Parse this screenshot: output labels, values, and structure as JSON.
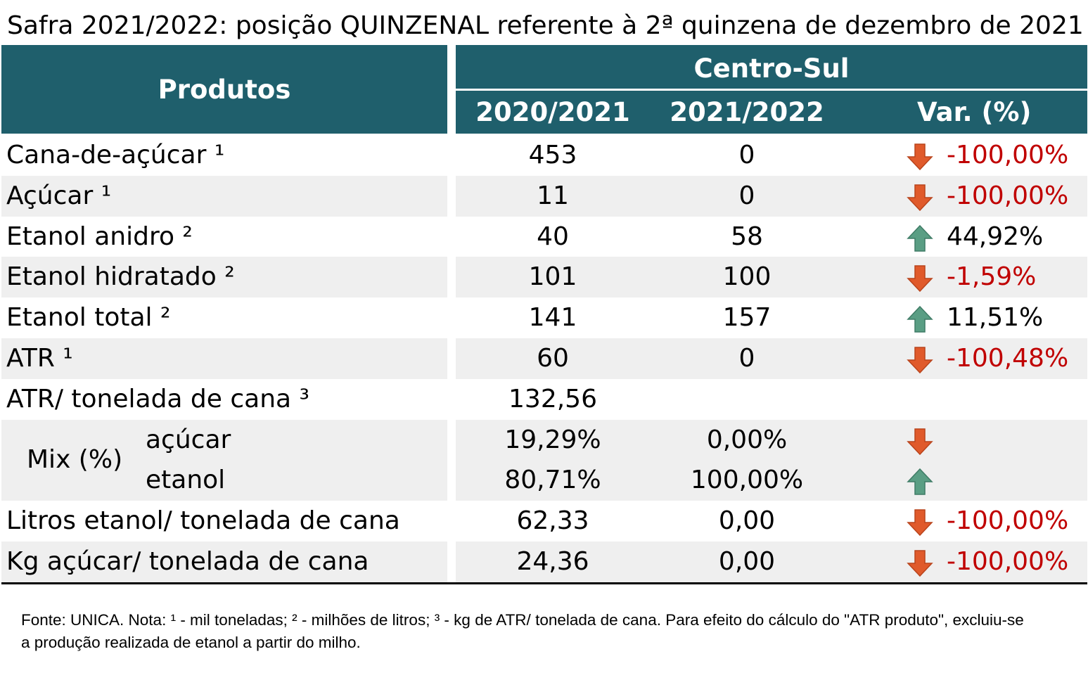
{
  "title": "Safra 2021/2022: posição QUINZENAL referente à 2ª quinzena de dezembro de 2021",
  "header": {
    "produtos": "Produtos",
    "region": "Centro-Sul",
    "col1": "2020/2021",
    "col2": "2021/2022",
    "col3": "Var. (%)"
  },
  "colors": {
    "header_bg": "#1f5f6c",
    "row_alt": "#efefef",
    "negative": "#c00000",
    "arrow_down": "#e05a2b",
    "arrow_up": "#5a9e84"
  },
  "rows": [
    {
      "label": "Cana-de-açúcar ¹",
      "v2020": "453",
      "v2021": "0",
      "var": "-100,00%",
      "dir": "down"
    },
    {
      "label": "Açúcar ¹",
      "v2020": "11",
      "v2021": "0",
      "var": "-100,00%",
      "dir": "down"
    },
    {
      "label": "Etanol anidro ²",
      "v2020": "40",
      "v2021": "58",
      "var": "44,92%",
      "dir": "up"
    },
    {
      "label": "Etanol hidratado ²",
      "v2020": "101",
      "v2021": "100",
      "var": "-1,59%",
      "dir": "down"
    },
    {
      "label": "Etanol total ²",
      "v2020": "141",
      "v2021": "157",
      "var": "11,51%",
      "dir": "up"
    },
    {
      "label": "ATR ¹",
      "v2020": "60",
      "v2021": "0",
      "var": "-100,48%",
      "dir": "down"
    },
    {
      "label": "ATR/ tonelada de cana ³",
      "v2020": "132,56",
      "v2021": "",
      "var": "",
      "dir": ""
    }
  ],
  "mix": {
    "label": "Mix (%)",
    "rows": [
      {
        "label": "açúcar",
        "v2020": "19,29%",
        "v2021": "0,00%",
        "dir": "down"
      },
      {
        "label": "etanol",
        "v2020": "80,71%",
        "v2021": "100,00%",
        "dir": "up"
      }
    ]
  },
  "rows_after": [
    {
      "label": "Litros etanol/ tonelada de cana",
      "v2020": "62,33",
      "v2021": "0,00",
      "var": "-100,00%",
      "dir": "down"
    },
    {
      "label": "Kg açúcar/ tonelada de cana",
      "v2020": "24,36",
      "v2021": "0,00",
      "var": "-100,00%",
      "dir": "down"
    }
  ],
  "note": "Fonte: UNICA. Nota: ¹ - mil toneladas; ² - milhões de litros; ³ - kg de ATR/ tonelada de cana. Para efeito do cálculo do \"ATR produto\", excluiu-se a produção realizada de etanol a partir do milho."
}
